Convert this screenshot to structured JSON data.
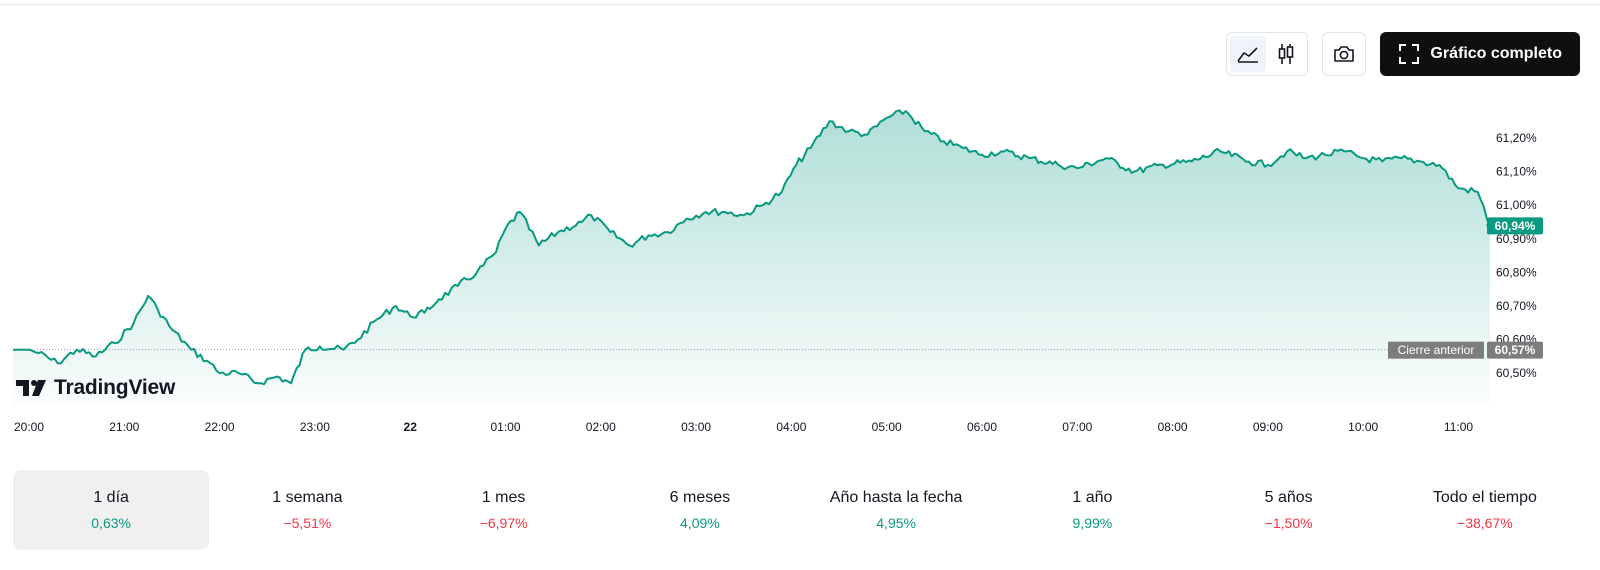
{
  "toolbar": {
    "full_chart_label": "Gráfico completo"
  },
  "logo": {
    "text": "TradingView"
  },
  "colors": {
    "line": "#089981",
    "positive": "#089981",
    "negative": "#f23645",
    "prev_close_badge": "#7d7d7d"
  },
  "chart_data": {
    "type": "area",
    "x_ticks": [
      "20:00",
      "21:00",
      "22:00",
      "23:00",
      "22",
      "01:00",
      "02:00",
      "03:00",
      "04:00",
      "05:00",
      "06:00",
      "07:00",
      "08:00",
      "09:00",
      "10:00",
      "11:00"
    ],
    "y_ticks": [
      "61,20%",
      "61,10%",
      "61,00%",
      "60,90%",
      "60,80%",
      "60,70%",
      "60,60%",
      "60,50%"
    ],
    "y_range": [
      60.47,
      61.3
    ],
    "x_range_hours": [
      20.0,
      35.4
    ],
    "series": [
      {
        "x": [
          20.0,
          20.1,
          20.3,
          20.5,
          20.7,
          20.9,
          21.1,
          21.25,
          21.35,
          21.5,
          21.7,
          21.9,
          22.0,
          22.2,
          22.4,
          22.6,
          22.75,
          22.9,
          23.05,
          23.3,
          23.45,
          23.65,
          23.85,
          24.0,
          24.15,
          24.3,
          24.5,
          24.7,
          24.9,
          25.0,
          25.15,
          25.35,
          25.55,
          25.8,
          25.9,
          26.1,
          26.3,
          26.5,
          26.7,
          26.9,
          27.1,
          27.3,
          27.5,
          27.7,
          27.9,
          28.05,
          28.2,
          28.4,
          28.6,
          28.8,
          29.0,
          29.2,
          29.4,
          29.6,
          29.8,
          30.0,
          30.2,
          30.5,
          30.8,
          31.0,
          31.3,
          31.6,
          31.9,
          32.2,
          32.5,
          32.8,
          33.0,
          33.2,
          33.4,
          33.6,
          33.8,
          34.0,
          34.2,
          34.4,
          34.6,
          34.8,
          35.0,
          35.2,
          35.33
        ],
        "y": [
          60.57,
          60.56,
          60.53,
          60.57,
          60.55,
          60.59,
          60.65,
          60.73,
          60.69,
          60.63,
          60.57,
          60.53,
          60.5,
          60.5,
          60.47,
          60.49,
          60.47,
          60.57,
          60.58,
          60.57,
          60.6,
          60.66,
          60.7,
          60.67,
          60.68,
          60.72,
          60.76,
          60.8,
          60.86,
          60.93,
          60.98,
          60.88,
          60.92,
          60.95,
          60.97,
          60.92,
          60.88,
          60.91,
          60.92,
          60.96,
          60.98,
          60.98,
          60.97,
          61.0,
          61.04,
          61.12,
          61.17,
          61.25,
          61.22,
          61.21,
          61.26,
          61.28,
          61.22,
          61.19,
          61.17,
          61.15,
          61.16,
          61.14,
          61.12,
          61.11,
          61.14,
          61.1,
          61.12,
          61.13,
          61.16,
          61.13,
          61.12,
          61.16,
          61.14,
          61.15,
          61.16,
          61.14,
          61.13,
          61.14,
          61.13,
          61.12,
          61.05,
          61.04,
          60.94
        ]
      }
    ],
    "previous_close": {
      "label": "Cierre anterior",
      "value": 60.57,
      "value_text": "60,57%"
    },
    "last_value": {
      "value": 60.94,
      "value_text": "60,94%"
    }
  },
  "periods": [
    {
      "label": "1 día",
      "value": "0,63%",
      "sign": "pos",
      "active": true
    },
    {
      "label": "1 semana",
      "value": "−5,51%",
      "sign": "neg",
      "active": false
    },
    {
      "label": "1 mes",
      "value": "−6,97%",
      "sign": "neg",
      "active": false
    },
    {
      "label": "6 meses",
      "value": "4,09%",
      "sign": "pos",
      "active": false
    },
    {
      "label": "Año hasta la fecha",
      "value": "4,95%",
      "sign": "pos",
      "active": false
    },
    {
      "label": "1 año",
      "value": "9,99%",
      "sign": "pos",
      "active": false
    },
    {
      "label": "5 años",
      "value": "−1,50%",
      "sign": "neg",
      "active": false
    },
    {
      "label": "Todo el tiempo",
      "value": "−38,67%",
      "sign": "neg",
      "active": false
    }
  ]
}
